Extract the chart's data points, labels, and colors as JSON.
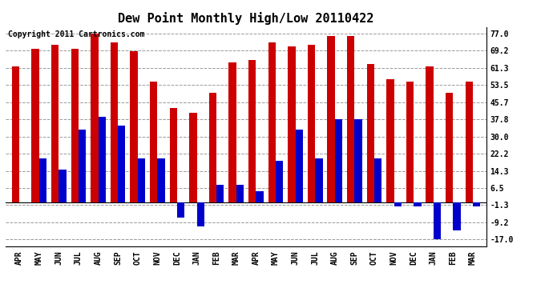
{
  "title": "Dew Point Monthly High/Low 20110422",
  "copyright": "Copyright 2011 Cartronics.com",
  "months": [
    "APR",
    "MAY",
    "JUN",
    "JUL",
    "AUG",
    "SEP",
    "OCT",
    "NOV",
    "DEC",
    "JAN",
    "FEB",
    "MAR",
    "APR",
    "MAY",
    "JUN",
    "JUL",
    "AUG",
    "SEP",
    "OCT",
    "NOV",
    "DEC",
    "JAN",
    "FEB",
    "MAR"
  ],
  "highs": [
    62,
    70,
    72,
    70,
    77,
    73,
    69,
    55,
    43,
    41,
    50,
    64,
    65,
    73,
    71,
    72,
    76,
    76,
    63,
    56,
    55,
    62,
    50,
    55
  ],
  "lows": [
    0,
    20,
    15,
    33,
    39,
    35,
    20,
    20,
    -7,
    -11,
    8,
    8,
    5,
    19,
    33,
    20,
    38,
    38,
    20,
    -2,
    -2,
    -17,
    -13,
    -2
  ],
  "high_color": "#cc0000",
  "low_color": "#0000cc",
  "bg_color": "#ffffff",
  "grid_color": "#999999",
  "yticks": [
    -17.0,
    -9.2,
    -1.3,
    6.5,
    14.3,
    22.2,
    30.0,
    37.8,
    45.7,
    53.5,
    61.3,
    69.2,
    77.0
  ],
  "ymin": -20,
  "ymax": 80,
  "bar_width": 0.38,
  "title_fontsize": 11,
  "tick_fontsize": 7,
  "copyright_fontsize": 7
}
